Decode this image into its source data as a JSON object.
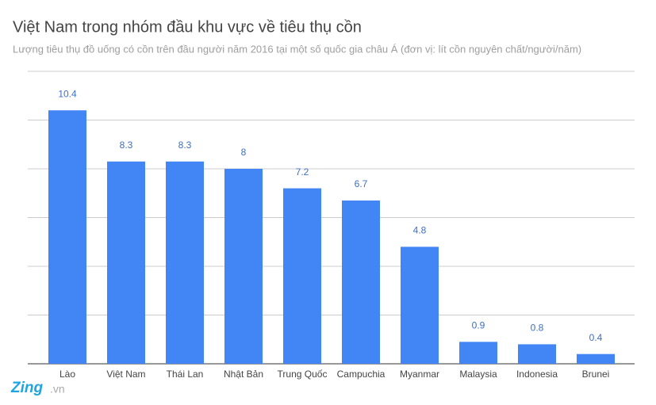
{
  "chart_data": {
    "type": "bar",
    "title": "Việt Nam trong nhóm đầu khu vực về tiêu thụ cồn",
    "subtitle": "Lượng tiêu thụ đồ uống có cồn trên đầu người năm 2016 tại một số quốc gia châu Á (đơn vị: lít cồn nguyên chất/người/năm)",
    "categories": [
      "Lào",
      "Việt Nam",
      "Thái Lan",
      "Nhật Bản",
      "Trung Quốc",
      "Campuchia",
      "Myanmar",
      "Malaysia",
      "Indonesia",
      "Brunei"
    ],
    "values": [
      10.4,
      8.3,
      8.3,
      8,
      7.2,
      6.7,
      4.8,
      0.9,
      0.8,
      0.4
    ],
    "color": "#4285f4",
    "ylim": [
      0,
      12
    ],
    "yticks": [
      0,
      2,
      4,
      6,
      8,
      10,
      12
    ],
    "grid": true
  },
  "logo": {
    "name": "Zing",
    "suffix": ".vn"
  }
}
